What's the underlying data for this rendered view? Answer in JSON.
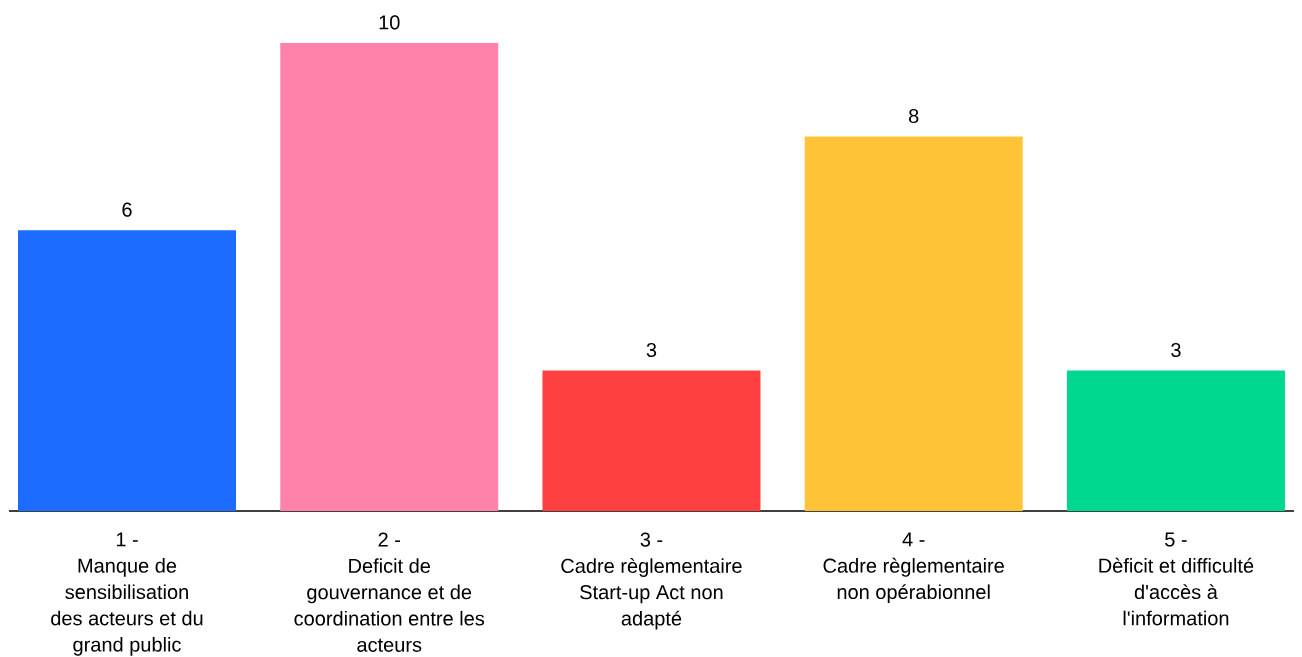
{
  "chart_data": {
    "type": "bar",
    "categories": [
      "1 -\nManque de\nsensibilisation\ndes acteurs et du\ngrand public",
      "2 -\nDeficit de\ngouvernance et de\ncoordination entre les\nacteurs",
      "3 -\nCadre règlementaire\nStart-up Act non\nadapté",
      "4 -\nCadre règlementaire\nnon opérabionnel",
      "5 -\nDèficit et difficulté\nd'accès à\nl'information"
    ],
    "values": [
      6,
      10,
      3,
      8,
      3
    ],
    "colors": [
      "#1b6cff",
      "#ff82ab",
      "#ff4040",
      "#ffc337",
      "#00d88f"
    ],
    "data_labels": true
  }
}
